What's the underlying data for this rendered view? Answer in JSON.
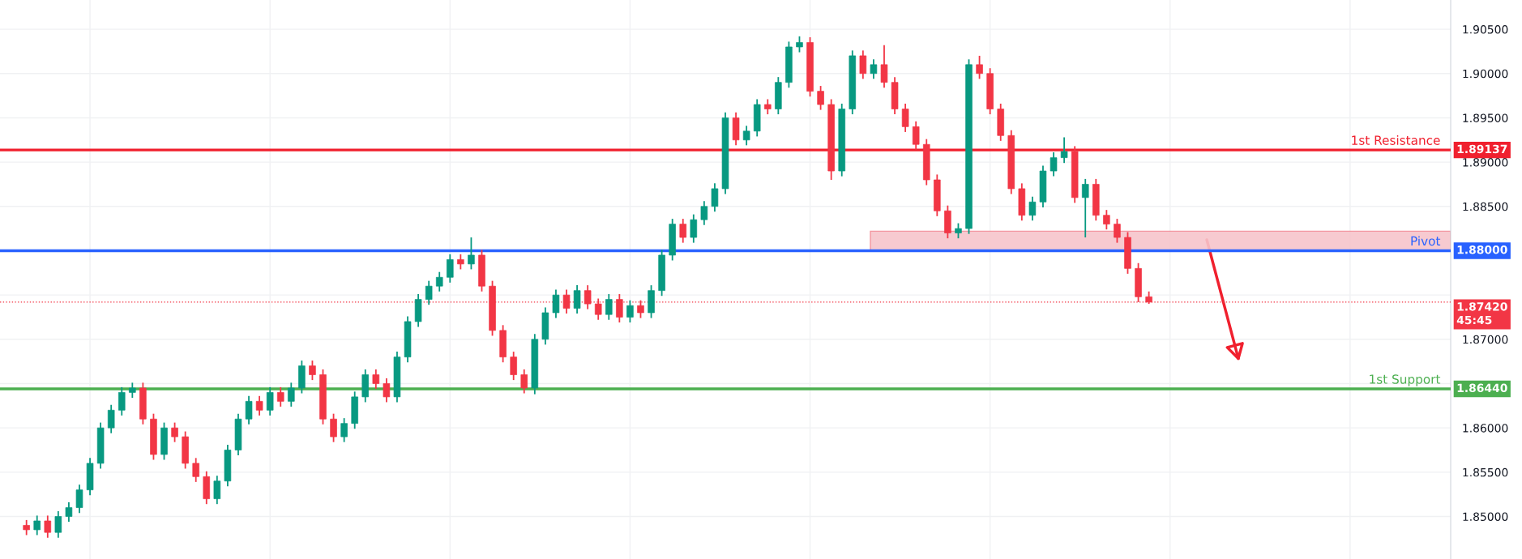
{
  "chart_data": {
    "type": "candlestick",
    "categories": [
      null,
      null,
      null,
      null,
      null,
      null,
      null,
      null,
      null,
      null,
      null,
      null,
      null,
      null,
      null,
      null,
      null,
      null,
      null,
      null,
      null,
      null,
      null,
      null,
      null,
      null,
      null,
      null,
      null,
      null,
      null,
      null,
      null,
      null,
      null,
      null,
      null,
      null,
      null,
      null,
      null,
      null,
      null,
      null,
      null,
      null,
      null,
      null,
      null,
      null,
      null,
      null,
      null,
      null,
      null,
      null,
      null,
      null,
      null,
      null,
      null,
      null,
      null,
      null,
      null,
      null,
      null,
      null,
      null,
      null,
      null,
      null,
      null,
      null,
      null,
      null,
      null,
      null,
      null,
      null,
      null,
      null,
      null,
      null,
      null,
      null,
      null,
      null,
      null,
      null,
      null,
      null,
      null,
      null,
      null,
      null,
      null,
      null,
      null,
      null,
      null,
      null,
      null,
      null,
      null,
      null,
      null,
      null,
      null,
      null,
      null,
      null,
      null,
      null,
      null,
      null,
      null,
      null,
      null,
      null,
      null,
      null,
      null,
      null,
      null,
      null,
      null,
      null,
      null,
      null,
      null,
      null,
      null,
      null,
      null,
      null,
      null
    ],
    "ohlc": [
      null,
      null,
      [
        1.849,
        1.8496,
        1.8479,
        1.8485
      ],
      [
        1.8485,
        1.8501,
        1.8479,
        1.8495
      ],
      [
        1.8495,
        1.8501,
        1.8476,
        1.8482
      ],
      [
        1.8482,
        1.8506,
        1.8476,
        1.85
      ],
      [
        1.85,
        1.8516,
        1.8494,
        1.851
      ],
      [
        1.851,
        1.8536,
        1.8504,
        1.853
      ],
      [
        1.853,
        1.8566,
        1.8524,
        1.856
      ],
      [
        1.856,
        1.8606,
        1.8554,
        1.86
      ],
      [
        1.86,
        1.8626,
        1.8594,
        1.862
      ],
      [
        1.862,
        1.8646,
        1.8614,
        1.864
      ],
      [
        1.864,
        1.8651,
        1.8634,
        1.8645
      ],
      [
        1.8645,
        1.8651,
        1.8604,
        1.861
      ],
      [
        1.861,
        1.8616,
        1.8564,
        1.857
      ],
      [
        1.857,
        1.8606,
        1.8564,
        1.86
      ],
      [
        1.86,
        1.8606,
        1.8584,
        1.859
      ],
      [
        1.859,
        1.8596,
        1.8554,
        1.856
      ],
      [
        1.856,
        1.8566,
        1.8539,
        1.8545
      ],
      [
        1.8545,
        1.8551,
        1.8514,
        1.852
      ],
      [
        1.852,
        1.8546,
        1.8514,
        1.854
      ],
      [
        1.854,
        1.8581,
        1.8534,
        1.8575
      ],
      [
        1.8575,
        1.8616,
        1.8569,
        1.861
      ],
      [
        1.861,
        1.8636,
        1.8604,
        1.863
      ],
      [
        1.863,
        1.8636,
        1.8614,
        1.862
      ],
      [
        1.862,
        1.8646,
        1.8614,
        1.864
      ],
      [
        1.864,
        1.8646,
        1.8624,
        1.863
      ],
      [
        1.863,
        1.8651,
        1.8624,
        1.8645
      ],
      [
        1.8645,
        1.8676,
        1.8639,
        1.867
      ],
      [
        1.867,
        1.8676,
        1.8654,
        1.866
      ],
      [
        1.866,
        1.8666,
        1.8604,
        1.861
      ],
      [
        1.861,
        1.8616,
        1.8584,
        1.859
      ],
      [
        1.859,
        1.8611,
        1.8584,
        1.8605
      ],
      [
        1.8605,
        1.8641,
        1.8599,
        1.8635
      ],
      [
        1.8635,
        1.8666,
        1.8629,
        1.866
      ],
      [
        1.866,
        1.8666,
        1.8644,
        1.865
      ],
      [
        1.865,
        1.8656,
        1.8629,
        1.8635
      ],
      [
        1.8635,
        1.8686,
        1.8629,
        1.868
      ],
      [
        1.868,
        1.8726,
        1.8674,
        1.872
      ],
      [
        1.872,
        1.8751,
        1.8714,
        1.8745
      ],
      [
        1.8745,
        1.8766,
        1.8739,
        1.876
      ],
      [
        1.876,
        1.8776,
        1.8754,
        1.877
      ],
      [
        1.877,
        1.8796,
        1.8764,
        1.879
      ],
      [
        1.879,
        1.8796,
        1.8779,
        1.8785
      ],
      [
        1.8785,
        1.8815,
        1.8779,
        1.8795
      ],
      [
        1.8795,
        1.8801,
        1.8754,
        1.876
      ],
      [
        1.876,
        1.8766,
        1.8704,
        1.871
      ],
      [
        1.871,
        1.8716,
        1.8674,
        1.868
      ],
      [
        1.868,
        1.8686,
        1.8654,
        1.866
      ],
      [
        1.866,
        1.8666,
        1.8639,
        1.8645
      ],
      [
        1.8645,
        1.8706,
        1.8638,
        1.87
      ],
      [
        1.87,
        1.8736,
        1.8694,
        1.873
      ],
      [
        1.873,
        1.8756,
        1.8724,
        1.875
      ],
      [
        1.875,
        1.8756,
        1.8729,
        1.8735
      ],
      [
        1.8735,
        1.8761,
        1.8729,
        1.8755
      ],
      [
        1.8755,
        1.8761,
        1.8734,
        1.874
      ],
      [
        1.874,
        1.8746,
        1.8722,
        1.8728
      ],
      [
        1.8728,
        1.8751,
        1.8722,
        1.8745
      ],
      [
        1.8745,
        1.8751,
        1.8719,
        1.8725
      ],
      [
        1.8725,
        1.8744,
        1.8719,
        1.8738
      ],
      [
        1.8738,
        1.8744,
        1.8724,
        1.873
      ],
      [
        1.873,
        1.8761,
        1.8724,
        1.8755
      ],
      [
        1.8755,
        1.8801,
        1.8749,
        1.8795
      ],
      [
        1.8795,
        1.8836,
        1.8789,
        1.883
      ],
      [
        1.883,
        1.8836,
        1.8809,
        1.8815
      ],
      [
        1.8815,
        1.8841,
        1.8809,
        1.8835
      ],
      [
        1.8835,
        1.8856,
        1.8829,
        1.885
      ],
      [
        1.885,
        1.8876,
        1.8844,
        1.887
      ],
      [
        1.887,
        1.8956,
        1.8864,
        1.895
      ],
      [
        1.895,
        1.8956,
        1.8919,
        1.8925
      ],
      [
        1.8925,
        1.8941,
        1.8919,
        1.8935
      ],
      [
        1.8935,
        1.8971,
        1.8929,
        1.8965
      ],
      [
        1.8965,
        1.8971,
        1.8954,
        1.896
      ],
      [
        1.896,
        1.8996,
        1.8954,
        1.899
      ],
      [
        1.899,
        1.9036,
        1.8984,
        1.903
      ],
      [
        1.903,
        1.9042,
        1.9024,
        1.9035
      ],
      [
        1.9035,
        1.9041,
        1.8974,
        1.898
      ],
      [
        1.898,
        1.8986,
        1.8959,
        1.8965
      ],
      [
        1.8965,
        1.8971,
        1.888,
        1.889
      ],
      [
        1.889,
        1.8966,
        1.8884,
        1.896
      ],
      [
        1.896,
        1.9026,
        1.8954,
        1.902
      ],
      [
        1.902,
        1.9026,
        1.8994,
        1.9
      ],
      [
        1.9,
        1.9016,
        1.8994,
        1.901
      ],
      [
        1.901,
        1.9032,
        1.8984,
        1.899
      ],
      [
        1.899,
        1.8996,
        1.8954,
        1.896
      ],
      [
        1.896,
        1.8966,
        1.8934,
        1.894
      ],
      [
        1.894,
        1.8946,
        1.8914,
        1.892
      ],
      [
        1.892,
        1.8926,
        1.8874,
        1.888
      ],
      [
        1.888,
        1.8886,
        1.8839,
        1.8845
      ],
      [
        1.8845,
        1.8851,
        1.8814,
        1.882
      ],
      [
        1.882,
        1.8831,
        1.8814,
        1.8825
      ],
      [
        1.8825,
        1.9016,
        1.8819,
        1.901
      ],
      [
        1.901,
        1.902,
        1.8994,
        1.9
      ],
      [
        1.9,
        1.9006,
        1.8954,
        1.896
      ],
      [
        1.896,
        1.8966,
        1.8924,
        1.893
      ],
      [
        1.893,
        1.8936,
        1.8864,
        1.887
      ],
      [
        1.887,
        1.8876,
        1.8834,
        1.884
      ],
      [
        1.884,
        1.8861,
        1.8834,
        1.8855
      ],
      [
        1.8855,
        1.8896,
        1.8849,
        1.889
      ],
      [
        1.889,
        1.8911,
        1.8884,
        1.8905
      ],
      [
        1.8905,
        1.8928,
        1.8899,
        1.8912
      ],
      [
        1.8912,
        1.8918,
        1.8854,
        1.886
      ],
      [
        1.886,
        1.8881,
        1.8815,
        1.8875
      ],
      [
        1.8875,
        1.8881,
        1.8834,
        1.884
      ],
      [
        1.884,
        1.8846,
        1.8824,
        1.883
      ],
      [
        1.883,
        1.8836,
        1.8809,
        1.8815
      ],
      [
        1.8815,
        1.8821,
        1.8774,
        1.878
      ],
      [
        1.878,
        1.8786,
        1.8742,
        1.8748
      ],
      [
        1.8748,
        1.8754,
        1.874,
        1.8742
      ],
      null,
      null,
      null,
      null,
      null,
      null,
      null,
      null,
      null,
      null,
      null,
      null,
      null,
      null,
      null,
      null,
      null,
      null,
      null,
      null,
      null,
      null,
      null,
      null,
      null,
      null,
      null,
      null
    ],
    "ylim": [
      1.8452,
      1.9083
    ],
    "yticks": [
      {
        "value": 1.85,
        "label": "1.85000"
      },
      {
        "value": 1.855,
        "label": "1.85500"
      },
      {
        "value": 1.86,
        "label": "1.86000"
      },
      {
        "value": 1.865,
        "label": null
      },
      {
        "value": 1.87,
        "label": "1.87000"
      },
      {
        "value": 1.875,
        "label": null
      },
      {
        "value": 1.88,
        "label": null
      },
      {
        "value": 1.885,
        "label": "1.88500"
      },
      {
        "value": 1.89,
        "label": "1.89000"
      },
      {
        "value": 1.895,
        "label": "1.89500"
      },
      {
        "value": 1.9,
        "label": "1.90000"
      },
      {
        "value": 1.905,
        "label": "1.90500"
      }
    ],
    "ref_lines": [
      {
        "axis": "y",
        "value": 1.89137,
        "label": "1st Resistance",
        "color": "#f0202e",
        "line_style": "solid"
      },
      {
        "axis": "y",
        "value": 1.88,
        "label": "Pivot",
        "color": "#2962ff",
        "line_style": "solid"
      },
      {
        "axis": "y",
        "value": 1.8644,
        "label": "1st Support",
        "color": "#4caf50",
        "line_style": "solid"
      },
      {
        "axis": "y",
        "value": 1.8742,
        "color": "#f23645",
        "line_style": "dotted"
      }
    ],
    "bands": [
      {
        "axis": "y",
        "from": 1.88,
        "to": 1.8822,
        "color": "#f7c5cb"
      }
    ],
    "annotations": [
      "1.89137",
      "1.88000",
      "1.86440",
      "1.87420",
      "45:45"
    ],
    "grid": true,
    "tick_labels": "y"
  }
}
